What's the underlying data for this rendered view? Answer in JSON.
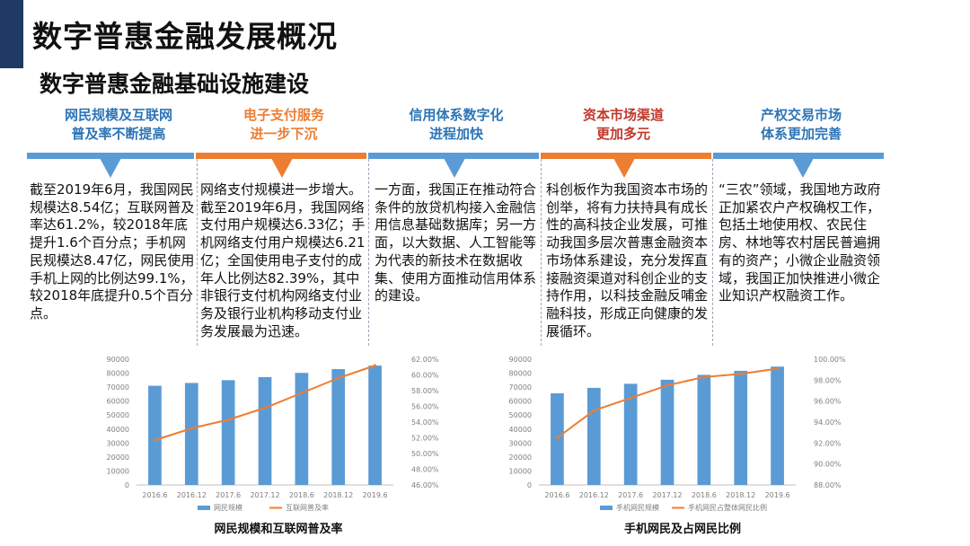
{
  "title": "数字普惠金融发展概况",
  "subtitle": "数字普惠金融基础设施建设",
  "colors": {
    "blue": "#2e75b6",
    "orange": "#ed7d31",
    "lightblue": "#5b9bd5",
    "dark": "#1f3a63"
  },
  "columns": [
    {
      "head1": "网民规模及互联网",
      "head2": "普及率不断提高",
      "color": "#2e75b6",
      "text": "截至2019年6月，我国网民规模达8.54亿；互联网普及率达61.2%，较2018年底提升1.6个百分点；手机网民规模达8.47亿，网民使用手机上网的比例达99.1%，较2018年底提升0.5个百分点。"
    },
    {
      "head1": "电子支付服务",
      "head2": "进一步下沉",
      "color": "#ed7d31",
      "text": "网络支付规模进一步增大。截至2019年6月，我国网络支付用户规模达6.33亿；手机网络支付用户规模达6.21亿；全国使用电子支付的成年人比例达82.39%，其中非银行支付机构网络支付业务及银行业机构移动支付业务发展最为迅速。"
    },
    {
      "head1": "信用体系数字化",
      "head2": "进程加快",
      "color": "#2e75b6",
      "text": "一方面，我国正在推动符合条件的放贷机构接入金融信用信息基础数据库；另一方面，以大数据、人工智能等为代表的新技术在数据收集、使用方面推动信用体系的建设。"
    },
    {
      "head1": "资本市场渠道",
      "head2": "更加多元",
      "color": "#ed7d31",
      "text": "科创板作为我国资本市场的创举，将有力扶持具有成长性的高科技企业发展，可推动我国多层次普惠金融资本市场体系建设，充分发挥直接融资渠道对科创企业的支持作用，以科技金融反哺金融科技，形成正向健康的发展循环。"
    },
    {
      "head1": "产权交易市场",
      "head2": "体系更加完善",
      "color": "#2e75b6",
      "text": "“三农”领域，我国地方政府正加紧农户产权确权工作，包括土地使用权、农民住房、林地等农村居民普遍拥有的资产；小微企业融资领域，我国正加快推进小微企业知识产权融资工作。"
    }
  ],
  "chart_data": [
    {
      "type": "bar",
      "title": "网民规模和互联网普及率",
      "categories": [
        "2016.6",
        "2016.12",
        "2017.6",
        "2017.12",
        "2018.6",
        "2018.12",
        "2019.6"
      ],
      "series": [
        {
          "name": "网民规模",
          "kind": "bar",
          "axis": "left",
          "values": [
            71000,
            73000,
            75000,
            77200,
            80200,
            82900,
            85400
          ]
        },
        {
          "name": "互联网普及率",
          "kind": "line",
          "axis": "right",
          "values": [
            51.7,
            53.2,
            54.3,
            55.8,
            57.7,
            59.6,
            61.2
          ]
        }
      ],
      "ylim": [
        0,
        90000
      ],
      "y_ticks": [
        "0",
        "10000",
        "20000",
        "30000",
        "40000",
        "50000",
        "60000",
        "70000",
        "80000",
        "90000"
      ],
      "y2lim": [
        46,
        62
      ],
      "y2_ticks": [
        "46.00%",
        "48.00%",
        "50.00%",
        "52.00%",
        "54.00%",
        "56.00%",
        "58.00%",
        "60.00%",
        "62.00%"
      ],
      "legend": "bottom",
      "grid": false
    },
    {
      "type": "bar",
      "title": "手机网民及占网民比例",
      "categories": [
        "2016.6",
        "2016.12",
        "2017.6",
        "2017.12",
        "2018.6",
        "2018.12",
        "2019.6"
      ],
      "series": [
        {
          "name": "手机网民规模",
          "kind": "bar",
          "axis": "left",
          "values": [
            65600,
            69500,
            72400,
            75300,
            78800,
            81700,
            84700
          ]
        },
        {
          "name": "手机网民占整体网民比例",
          "kind": "line",
          "axis": "right",
          "values": [
            92.5,
            95.1,
            96.3,
            97.5,
            98.3,
            98.6,
            99.1
          ]
        }
      ],
      "ylim": [
        0,
        90000
      ],
      "y_ticks": [
        "0",
        "10000",
        "20000",
        "30000",
        "40000",
        "50000",
        "60000",
        "70000",
        "80000",
        "90000"
      ],
      "y2lim": [
        88,
        100
      ],
      "y2_ticks": [
        "88.00%",
        "90.00%",
        "92.00%",
        "94.00%",
        "96.00%",
        "98.00%",
        "100.00%"
      ],
      "legend": "bottom",
      "grid": false
    }
  ]
}
